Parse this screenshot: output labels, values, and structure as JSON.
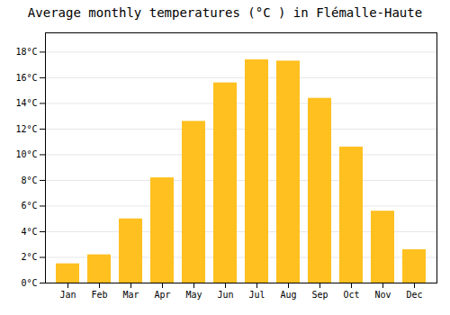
{
  "chart_data": {
    "type": "bar",
    "title": "Average monthly temperatures (°C ) in Flémalle-Haute",
    "categories": [
      "Jan",
      "Feb",
      "Mar",
      "Apr",
      "May",
      "Jun",
      "Jul",
      "Aug",
      "Sep",
      "Oct",
      "Nov",
      "Dec"
    ],
    "values": [
      1.5,
      2.2,
      5.0,
      8.2,
      12.6,
      15.6,
      17.4,
      17.3,
      14.4,
      10.6,
      5.6,
      2.6
    ],
    "color": "#FFC020",
    "ylim": [
      0,
      19.5
    ],
    "yticks": [
      {
        "value": 0,
        "label": "0°C"
      },
      {
        "value": 2,
        "label": "2°C"
      },
      {
        "value": 4,
        "label": "4°C"
      },
      {
        "value": 6,
        "label": "6°C"
      },
      {
        "value": 8,
        "label": "8°C"
      },
      {
        "value": 10,
        "label": "10°C"
      },
      {
        "value": 12,
        "label": "12°C"
      },
      {
        "value": 14,
        "label": "14°C"
      },
      {
        "value": 16,
        "label": "16°C"
      },
      {
        "value": 18,
        "label": "18°C"
      }
    ],
    "grid": true
  }
}
